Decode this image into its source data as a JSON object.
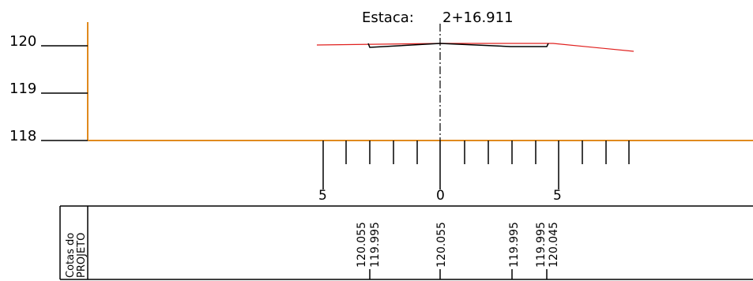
{
  "station": {
    "label": "Estaca:",
    "value": "2+16.911"
  },
  "elevation_axis": [
    "120",
    "119",
    "118"
  ],
  "offset_ticks": [
    "5",
    "0",
    "5"
  ],
  "table": {
    "row_header": [
      "Cotas do",
      "PROJETO"
    ],
    "elevations": [
      "120.055",
      "119.995",
      "120.055",
      "119.995",
      "119.995",
      "120.045"
    ]
  },
  "colors": {
    "axis": "#e08a1e",
    "terrain": "#e0201e",
    "ink": "#000000"
  }
}
